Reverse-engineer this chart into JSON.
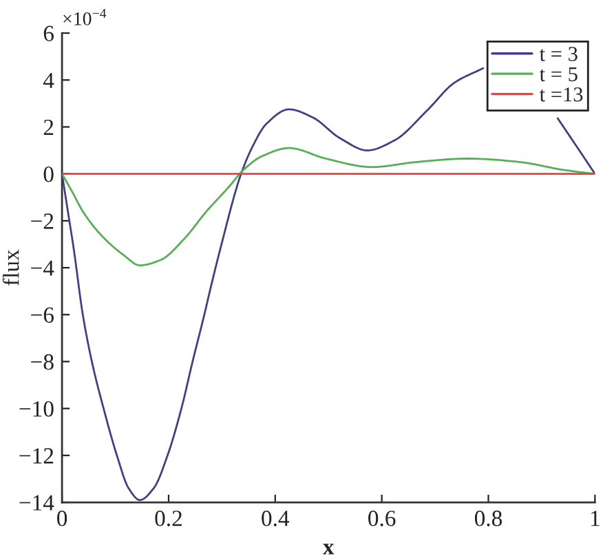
{
  "chart_data": {
    "type": "line",
    "xlabel": "x",
    "ylabel": "flux",
    "annotations": [
      "×10$^{−4}$"
    ],
    "xlim": [
      0,
      1
    ],
    "ylim": [
      -14,
      6
    ],
    "xticks": [
      0,
      0.2,
      0.4,
      0.6,
      0.8,
      1
    ],
    "yticks": [
      6,
      4,
      2,
      0,
      -2,
      -4,
      -6,
      -8,
      -10,
      -12,
      -14
    ],
    "legend": "top right",
    "line_style": "solid",
    "series": [
      {
        "name": "t = 3",
        "color": "#40408a",
        "x": [
          0,
          0.011,
          0.022,
          0.039,
          0.056,
          0.078,
          0.103,
          0.125,
          0.146,
          0.172,
          0.198,
          0.224,
          0.245,
          0.267,
          0.28,
          0.297,
          0.336,
          0.357,
          0.383,
          0.426,
          0.47,
          0.521,
          0.573,
          0.624,
          0.685,
          0.736,
          0.79,
          0.86,
          0.93,
          0.965,
          1
        ],
        "values": [
          0,
          -1.6,
          -3.2,
          -6.0,
          -8.0,
          -10.0,
          -12.0,
          -13.4,
          -13.9,
          -13.4,
          -12.0,
          -10.0,
          -8.0,
          -6.0,
          -4.75,
          -3.2,
          0,
          1.14,
          2.12,
          2.75,
          2.41,
          1.53,
          1.0,
          1.43,
          2.7,
          3.88,
          4.5,
          null,
          2.37,
          1.19,
          0
        ]
      },
      {
        "name": "t = 5",
        "color": "#55b055",
        "x": [
          0,
          0.02,
          0.039,
          0.073,
          0.116,
          0.146,
          0.185,
          0.228,
          0.271,
          0.314,
          0.34,
          0.375,
          0.426,
          0.495,
          0.581,
          0.667,
          0.762,
          0.857,
          0.943,
          1
        ],
        "values": [
          0,
          -0.8,
          -1.6,
          -2.6,
          -3.47,
          -3.9,
          -3.67,
          -2.8,
          -1.6,
          -0.53,
          0.16,
          0.75,
          1.1,
          0.65,
          0.29,
          0.51,
          0.65,
          0.51,
          0.16,
          0
        ]
      },
      {
        "name": "t =13",
        "color": "#e8423f",
        "x": [
          0,
          0.5,
          1
        ],
        "values": [
          0,
          0,
          0
        ]
      }
    ]
  }
}
